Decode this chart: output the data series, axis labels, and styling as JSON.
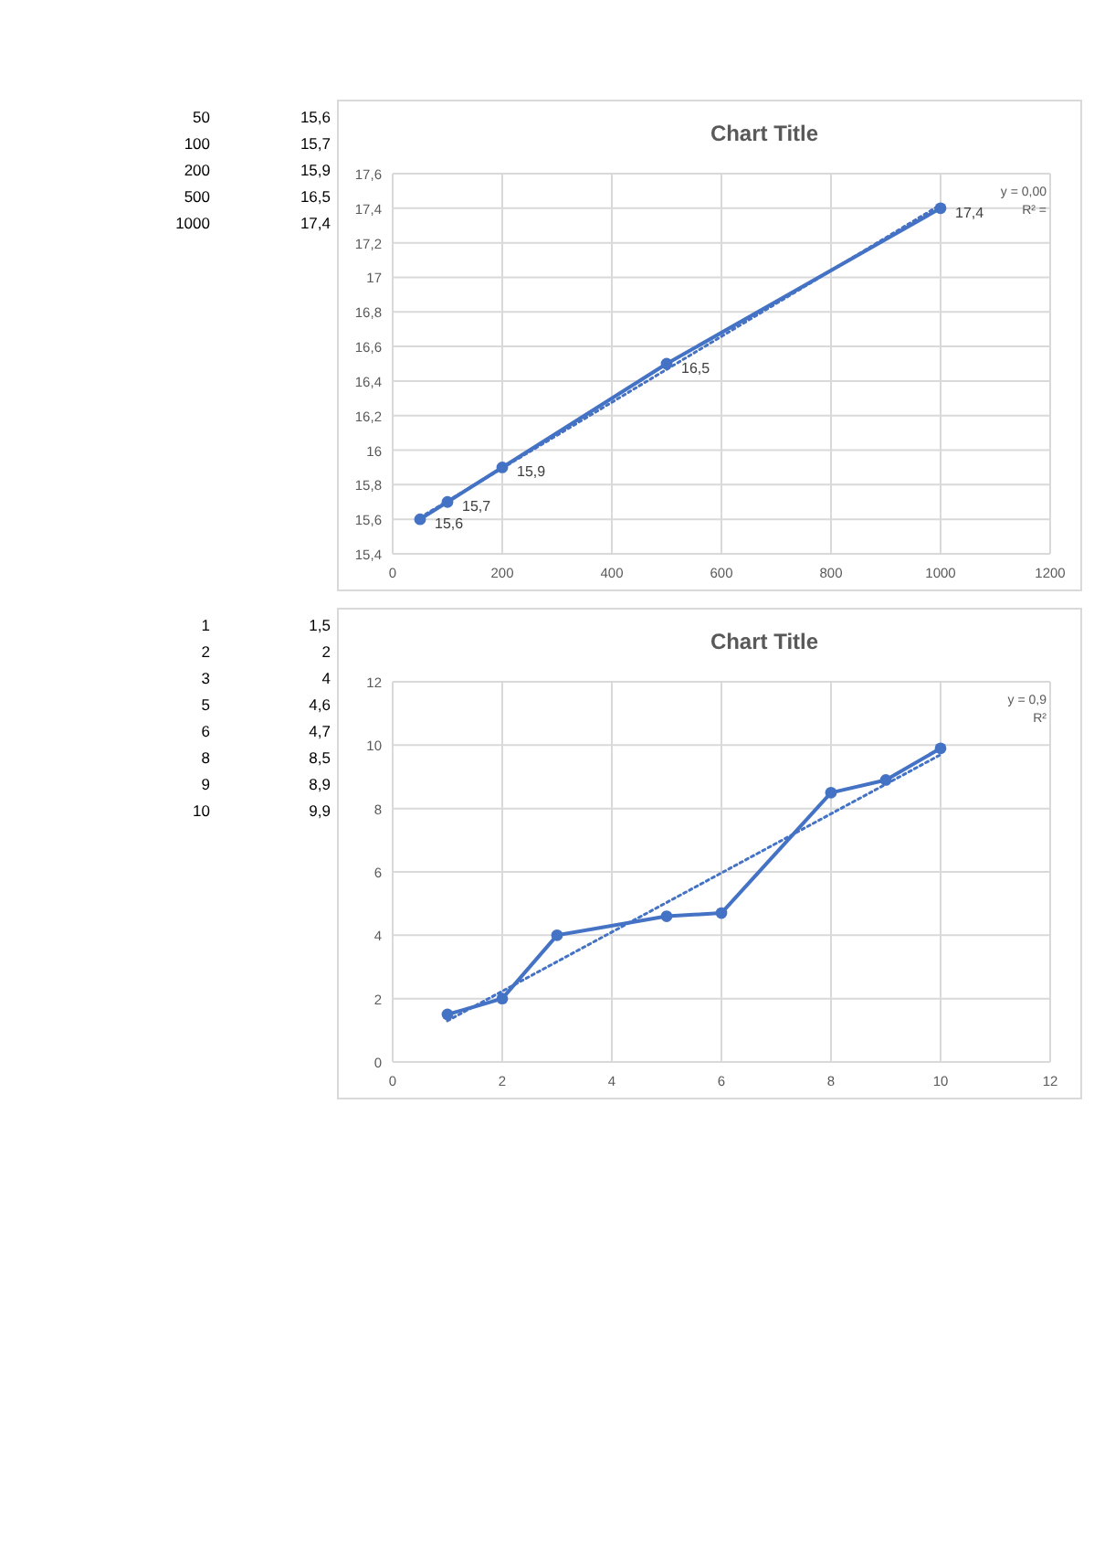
{
  "chart_data": [
    {
      "type": "other",
      "annotations": [
        "50",
        "15,6",
        "100",
        "15,7",
        "200",
        "15,9",
        "500",
        "16,5",
        "1000",
        "17,4"
      ]
    },
    {
      "type": "line",
      "title": "Chart Title",
      "x": [
        50,
        100,
        200,
        500,
        1000
      ],
      "series": [
        {
          "color": "#4472c4",
          "values": [
            15.6,
            15.7,
            15.9,
            16.5,
            17.4
          ],
          "value_labels": [
            "15,6",
            "15,7",
            "15,9",
            "16,5",
            "17,4"
          ],
          "marker": "circle",
          "line_style": "solid"
        },
        {
          "color": "#4472c4",
          "x": [
            50,
            1000
          ],
          "values": [
            15.61,
            17.42
          ],
          "marker": "none",
          "line_style": "dotted"
        }
      ],
      "xlim": [
        0,
        1200
      ],
      "xticks": [
        0,
        200,
        400,
        600,
        800,
        1000,
        1200
      ],
      "ylim": [
        15.4,
        17.6
      ],
      "yticks": [
        {
          "value": 15.4,
          "label": "15,4"
        },
        {
          "value": 15.6,
          "label": "15,6"
        },
        {
          "value": 15.8,
          "label": "15,8"
        },
        16,
        {
          "value": 16.2,
          "label": "16,2"
        },
        {
          "value": 16.4,
          "label": "16,4"
        },
        {
          "value": 16.6,
          "label": "16,6"
        },
        {
          "value": 16.8,
          "label": "16,8"
        },
        17,
        {
          "value": 17.2,
          "label": "17,2"
        },
        {
          "value": 17.4,
          "label": "17,4"
        },
        {
          "value": 17.6,
          "label": "17,6"
        }
      ],
      "grid": true,
      "annotations": [
        "y = 0,00",
        "R² ="
      ]
    },
    {
      "type": "other",
      "annotations": [
        "1",
        "1,5",
        "2",
        "2",
        "3",
        "4",
        "5",
        "4,6",
        "6",
        "4,7",
        "8",
        "8,5",
        "9",
        "8,9",
        "10",
        "9,9"
      ]
    },
    {
      "type": "line",
      "title": "Chart Title",
      "x": [
        1,
        2,
        3,
        5,
        6,
        8,
        9,
        10
      ],
      "series": [
        {
          "color": "#4472c4",
          "values": [
            1.5,
            2,
            4,
            4.6,
            4.7,
            8.5,
            8.9,
            9.9
          ],
          "marker": "circle",
          "line_style": "solid"
        },
        {
          "color": "#4472c4",
          "x": [
            1,
            10
          ],
          "values": [
            1.3,
            9.7
          ],
          "marker": "none",
          "line_style": "dotted"
        }
      ],
      "xlim": [
        0,
        12
      ],
      "xticks": [
        0,
        2,
        4,
        6,
        8,
        10,
        12
      ],
      "ylim": [
        0,
        12
      ],
      "yticks": [
        0,
        2,
        4,
        6,
        8,
        10,
        12
      ],
      "grid": true,
      "annotations": [
        "y = 0,9",
        "R²"
      ]
    }
  ]
}
